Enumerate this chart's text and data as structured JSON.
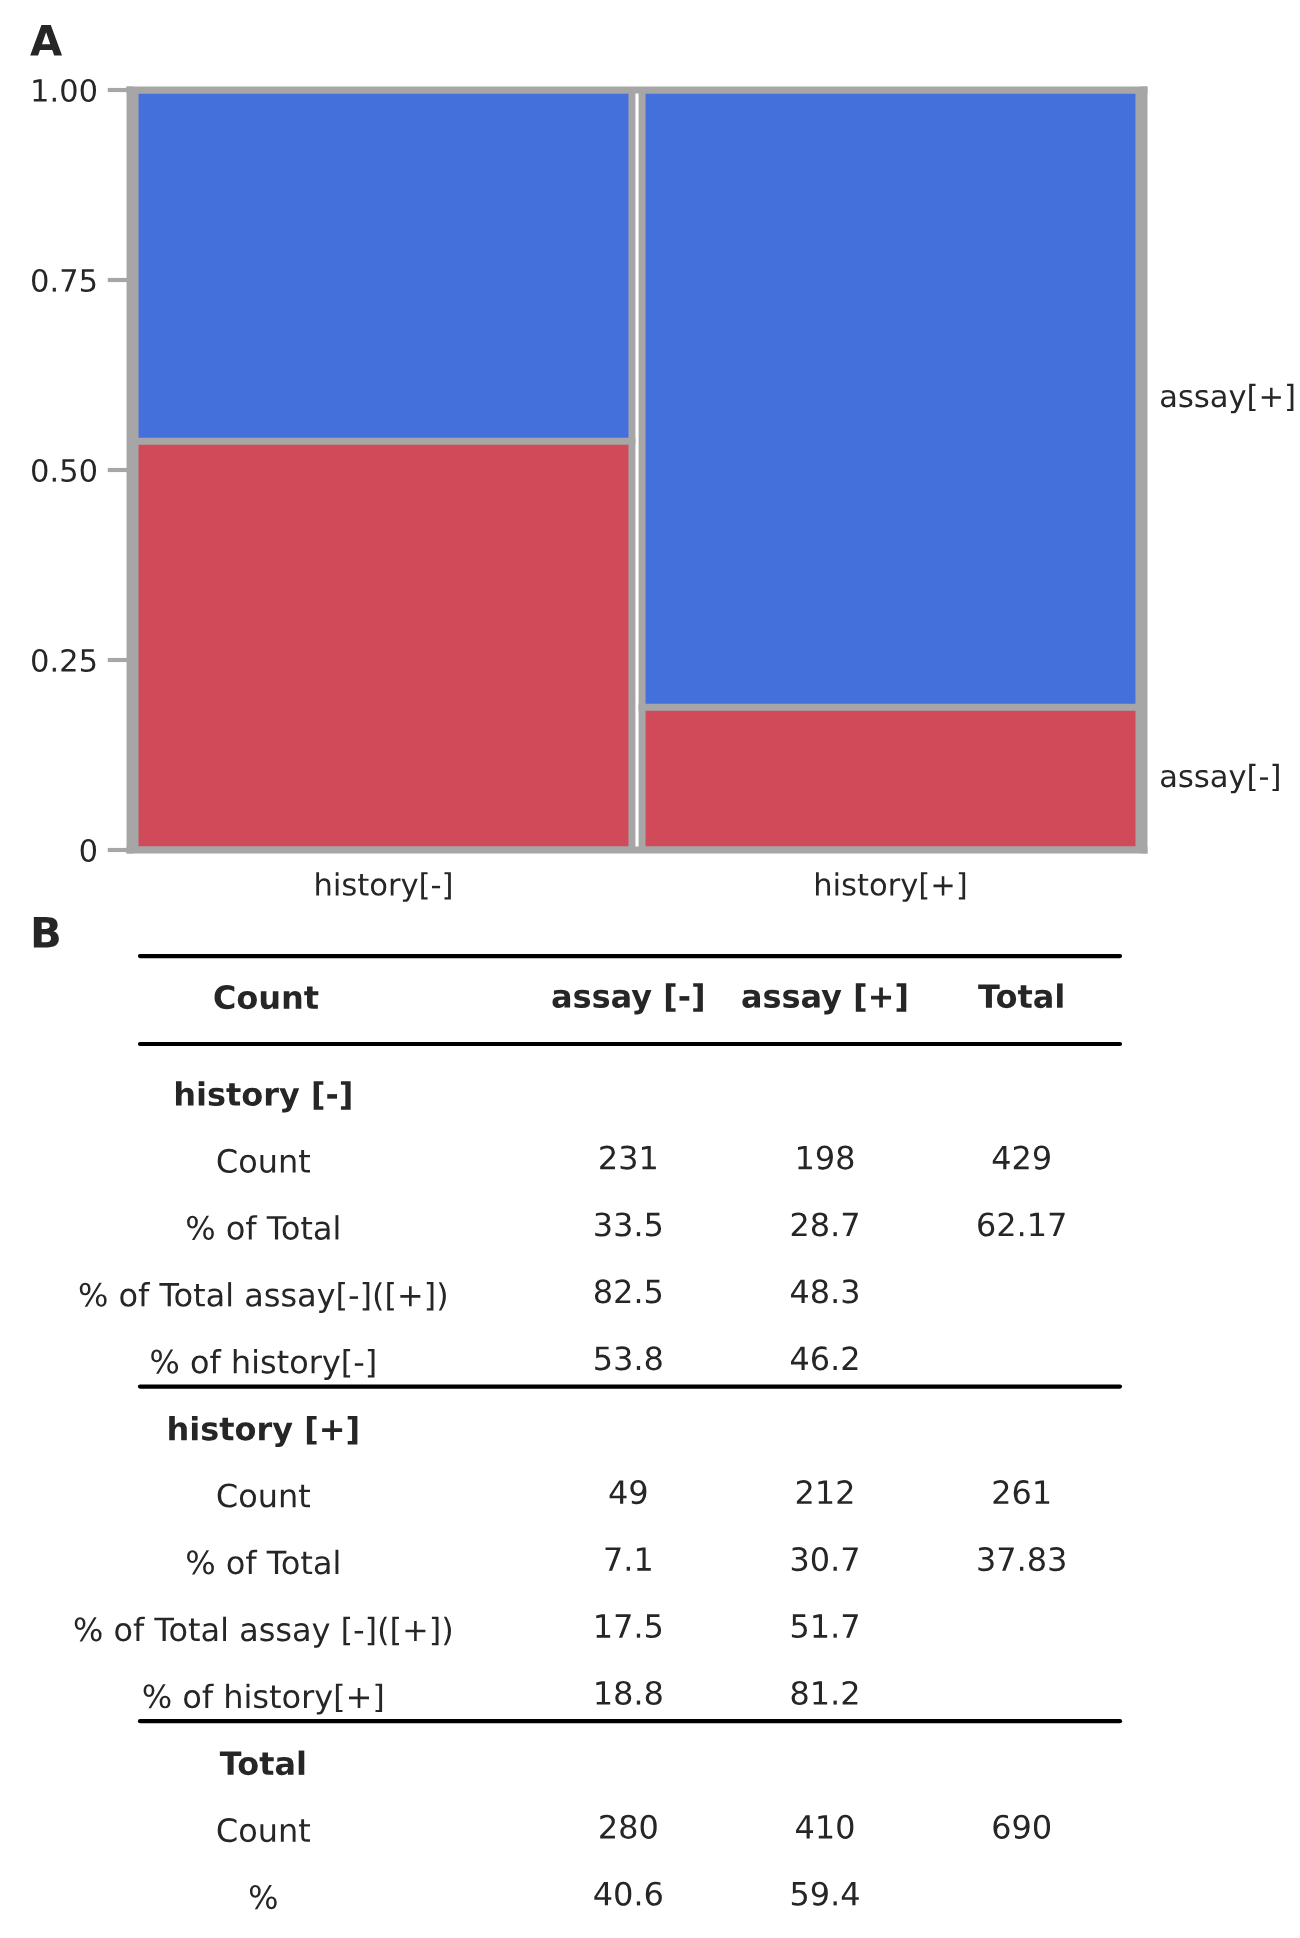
{
  "chart_data": [
    {
      "type": "bar",
      "stacked": true,
      "annotations": [
        "A"
      ],
      "categories": [
        "history[-]",
        "history[+]"
      ],
      "series": [
        {
          "name": "assay[-]",
          "color": "#d14a5a",
          "values": [
            0.538,
            0.188
          ]
        },
        {
          "name": "assay[+]",
          "color": "#4470db",
          "values": [
            0.462,
            0.812
          ]
        }
      ],
      "ylim": [
        0,
        1
      ],
      "yticks": [
        0,
        0.25,
        {
          "value": 0.5,
          "label": "0.50"
        },
        0.75,
        {
          "value": 1,
          "label": "1.00"
        }
      ],
      "legend": false,
      "grid": false
    },
    {
      "type": "heatmap",
      "annotations": [
        "B"
      ],
      "ylabel": "Count",
      "categories": [
        "assay [-]",
        "assay [+]",
        "Total"
      ],
      "y_categories": [
        "history [-]",
        "Count",
        "% of Total",
        "% of Total assay[-]([+])",
        "% of history[-]",
        "history [+]",
        "Count",
        "% of Total",
        "% of Total assay [-]([+])",
        "% of history[+]",
        "Total",
        "Count",
        "%"
      ],
      "cells": [
        [
          null,
          null,
          null
        ],
        [
          231,
          198,
          429
        ],
        [
          33.5,
          28.7,
          62.17
        ],
        [
          82.5,
          48.3,
          null
        ],
        [
          53.8,
          46.2,
          null
        ],
        [
          null,
          null,
          null
        ],
        [
          49,
          212,
          261
        ],
        [
          7.1,
          30.7,
          37.83
        ],
        [
          17.5,
          51.7,
          null
        ],
        [
          18.8,
          81.2,
          null
        ],
        [
          null,
          null,
          null
        ],
        [
          280,
          410,
          690
        ],
        [
          40.6,
          59.4,
          null
        ]
      ],
      "data_labels": true
    }
  ]
}
